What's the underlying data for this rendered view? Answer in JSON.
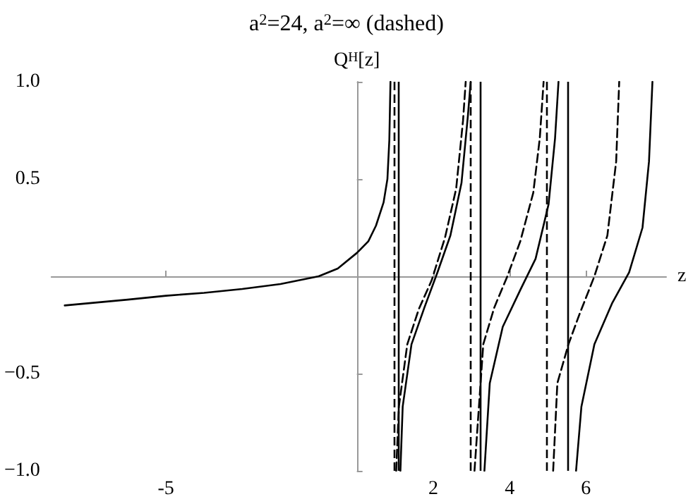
{
  "chart_data": {
    "type": "line",
    "title": "a$^{2}$=24, a$^{2}$=∞ (dashed)",
    "xlabel": "z",
    "ylabel": "Q$^{H}$[z]",
    "xlim": [
      -8,
      8.1
    ],
    "ylim": [
      -1,
      1
    ],
    "xticks": [
      -5,
      2,
      4,
      6
    ],
    "yticks": [
      {
        "value": -1,
        "label": "−1.0"
      },
      {
        "value": -0.5,
        "label": "−0.5"
      },
      0.5,
      {
        "value": 1,
        "label": "1.0"
      }
    ],
    "grid": false,
    "marker": "none",
    "series": [
      {
        "color": "#000000",
        "line_style": "solid",
        "x": [
          -7.65,
          -6,
          -5,
          -4,
          -3,
          -2,
          -1,
          -0.5,
          0,
          0.3,
          0.5,
          0.7,
          0.8,
          0.85,
          0.88,
          1.0,
          1.14,
          1.2,
          1.43,
          1.77,
          2.11,
          2.45,
          2.74,
          2.91,
          2.98,
          3.1,
          3.34,
          3.48,
          3.82,
          4.28,
          4.68,
          5.02,
          5.19,
          5.28,
          5.4,
          5.74,
          5.88,
          6.22,
          6.68,
          7.13,
          7.48,
          7.65,
          7.74
        ],
        "values": [
          -0.15,
          -0.12,
          -0.1,
          -0.085,
          -0.065,
          -0.04,
          0.0,
          0.04,
          0.12,
          0.18,
          0.26,
          0.38,
          0.5,
          0.7,
          1.0,
          null,
          -1.0,
          -0.67,
          -0.35,
          -0.16,
          0.02,
          0.21,
          0.48,
          0.83,
          1.0,
          null,
          -1.0,
          -0.55,
          -0.26,
          -0.07,
          0.09,
          0.37,
          0.71,
          1.0,
          null,
          -1.0,
          -0.67,
          -0.35,
          -0.14,
          0.02,
          0.25,
          0.59,
          1.0
        ]
      },
      {
        "color": "#000000",
        "line_style": "dashed",
        "x": [
          1.03,
          1.1,
          1.32,
          1.62,
          1.96,
          2.31,
          2.6,
          2.78,
          2.85,
          2.95,
          3.08,
          3.31,
          3.6,
          3.94,
          4.28,
          4.62,
          4.79,
          4.89,
          5.0,
          5.14,
          5.25,
          5.54,
          5.82,
          6.22,
          6.56,
          6.79,
          6.87
        ],
        "values": [
          -1.0,
          -0.67,
          -0.35,
          -0.17,
          -0.02,
          0.2,
          0.45,
          0.8,
          1.0,
          null,
          -1.0,
          -0.35,
          -0.16,
          0.0,
          0.18,
          0.43,
          0.71,
          1.0,
          null,
          -1.0,
          -0.55,
          -0.35,
          -0.2,
          0.0,
          0.21,
          0.59,
          1.0
        ]
      }
    ],
    "ref_lines": [
      {
        "axis": "x",
        "value": 0.97,
        "line_style": "dashed",
        "color": "#000000"
      },
      {
        "axis": "x",
        "value": 1.08,
        "line_style": "solid",
        "color": "#000000"
      },
      {
        "axis": "x",
        "value": 2.97,
        "line_style": "dashed",
        "color": "#000000"
      },
      {
        "axis": "x",
        "value": 3.23,
        "line_style": "solid",
        "color": "#000000"
      },
      {
        "axis": "x",
        "value": 4.97,
        "line_style": "dashed",
        "color": "#000000"
      },
      {
        "axis": "x",
        "value": 5.54,
        "line_style": "solid",
        "color": "#000000"
      }
    ]
  }
}
